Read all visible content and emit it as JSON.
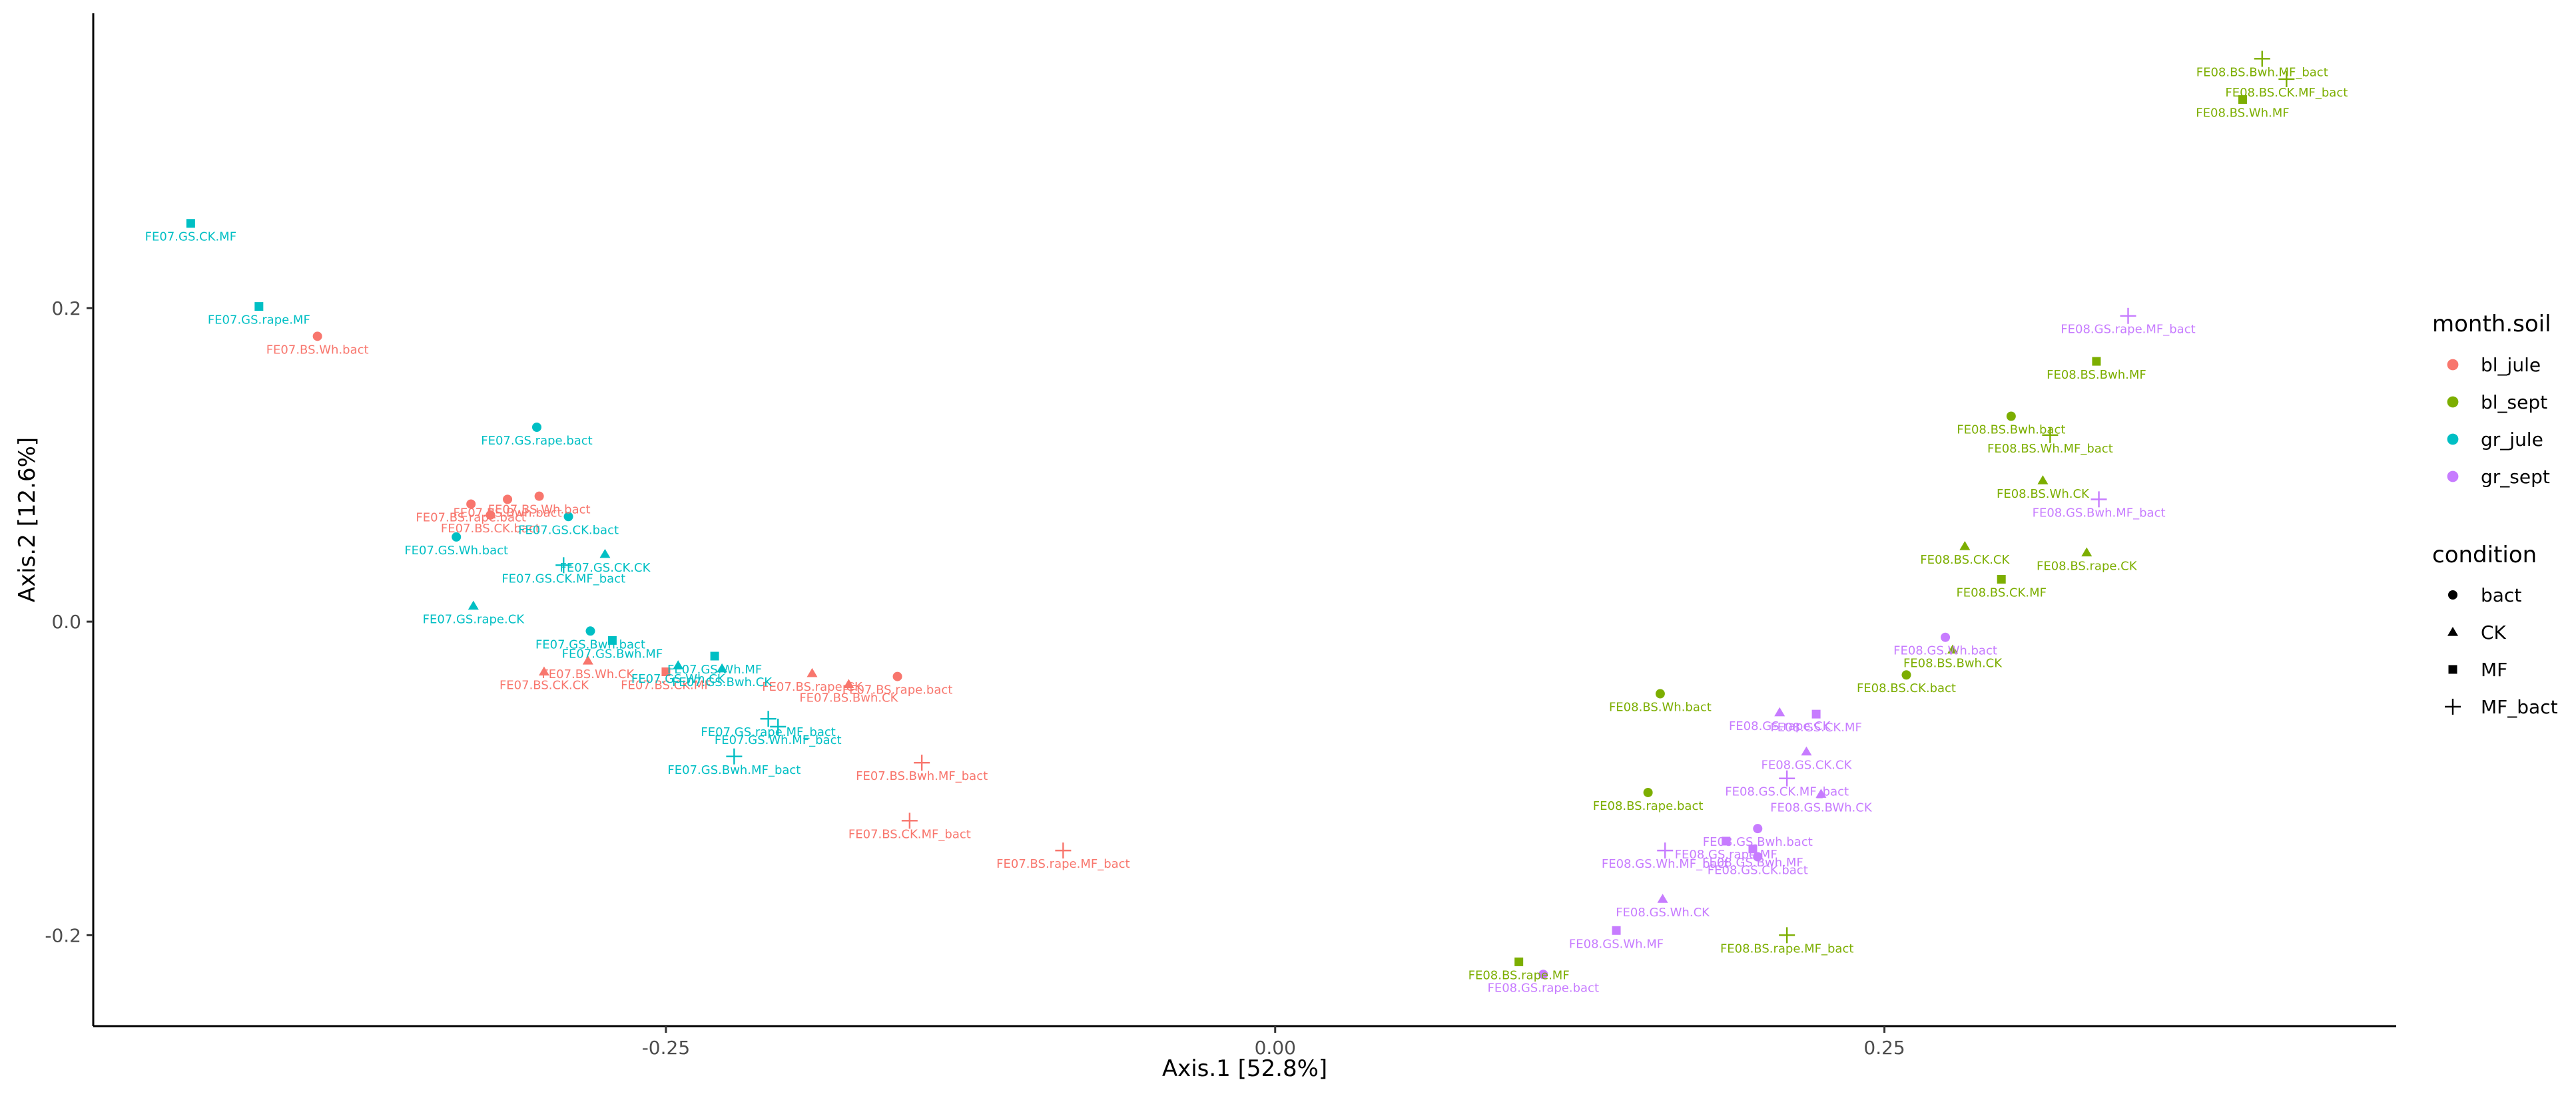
{
  "chart_data": {
    "type": "scatter",
    "title": "",
    "xlabel": "Axis.1   [52.8%]",
    "ylabel": "Axis.2   [12.6%]",
    "xlim": [
      -0.485,
      0.46
    ],
    "ylim": [
      -0.258,
      0.388
    ],
    "x_ticks": [
      -0.25,
      0.0,
      0.25
    ],
    "x_tick_labels": [
      "-0.25",
      "0.00",
      "0.25"
    ],
    "y_ticks": [
      -0.2,
      0.0,
      0.2
    ],
    "y_tick_labels": [
      "-0.2",
      "0.0",
      "0.2"
    ],
    "grid": false,
    "legend_position": "right",
    "legend_color": {
      "title": "month.soil",
      "items": [
        {
          "key": "bl_jule",
          "label": "bl_jule",
          "color": "#F8766D"
        },
        {
          "key": "bl_sept",
          "label": "bl_sept",
          "color": "#7CAE00"
        },
        {
          "key": "gr_jule",
          "label": "gr_jule",
          "color": "#00BFC4"
        },
        {
          "key": "gr_sept",
          "label": "gr_sept",
          "color": "#C77CFF"
        }
      ]
    },
    "legend_shape": {
      "title": "condition",
      "items": [
        {
          "key": "bact",
          "label": "bact",
          "shape": "circle"
        },
        {
          "key": "CK",
          "label": "CK",
          "shape": "triangle"
        },
        {
          "key": "MF",
          "label": "MF",
          "shape": "square"
        },
        {
          "key": "MF_bact",
          "label": "MF_bact",
          "shape": "plus"
        }
      ]
    },
    "points": [
      {
        "x": -0.393,
        "y": 0.182,
        "group": "bl_jule",
        "cond": "bact",
        "label": "FE07.BS.Wh.bact"
      },
      {
        "x": -0.33,
        "y": 0.075,
        "group": "bl_jule",
        "cond": "bact",
        "label": "FE07.BS.rape.bact"
      },
      {
        "x": -0.315,
        "y": 0.078,
        "group": "bl_jule",
        "cond": "bact",
        "label": "FE07.BS.Bwh.bact"
      },
      {
        "x": -0.302,
        "y": 0.08,
        "group": "bl_jule",
        "cond": "bact",
        "label": "FE07.BS.Wh.bact"
      },
      {
        "x": -0.322,
        "y": 0.068,
        "group": "bl_jule",
        "cond": "bact",
        "label": "FE07.BS.CK.bact"
      },
      {
        "x": -0.3,
        "y": -0.032,
        "group": "bl_jule",
        "cond": "CK",
        "label": "FE07.BS.CK.CK"
      },
      {
        "x": -0.282,
        "y": -0.025,
        "group": "bl_jule",
        "cond": "CK",
        "label": "FE07.BS.Wh.CK"
      },
      {
        "x": -0.25,
        "y": -0.032,
        "group": "bl_jule",
        "cond": "MF",
        "label": "FE07.BS.CK.MF"
      },
      {
        "x": -0.19,
        "y": -0.033,
        "group": "bl_jule",
        "cond": "CK",
        "label": "FE07.BS.rape.CK"
      },
      {
        "x": -0.175,
        "y": -0.04,
        "group": "bl_jule",
        "cond": "CK",
        "label": "FE07.BS.Bwh.CK"
      },
      {
        "x": -0.155,
        "y": -0.035,
        "group": "bl_jule",
        "cond": "bact",
        "label": "FE07.BS.rape.bact"
      },
      {
        "x": -0.145,
        "y": -0.09,
        "group": "bl_jule",
        "cond": "MF_bact",
        "label": "FE07.BS.Bwh.MF_bact"
      },
      {
        "x": -0.15,
        "y": -0.127,
        "group": "bl_jule",
        "cond": "MF_bact",
        "label": "FE07.BS.CK.MF_bact"
      },
      {
        "x": -0.087,
        "y": -0.146,
        "group": "bl_jule",
        "cond": "MF_bact",
        "label": "FE07.BS.rape.MF_bact"
      },
      {
        "x": -0.445,
        "y": 0.254,
        "group": "gr_jule",
        "cond": "MF",
        "label": "FE07.GS.CK.MF"
      },
      {
        "x": -0.417,
        "y": 0.201,
        "group": "gr_jule",
        "cond": "MF",
        "label": "FE07.GS.rape.MF"
      },
      {
        "x": -0.303,
        "y": 0.124,
        "group": "gr_jule",
        "cond": "bact",
        "label": "FE07.GS.rape.bact"
      },
      {
        "x": -0.29,
        "y": 0.067,
        "group": "gr_jule",
        "cond": "bact",
        "label": "FE07.GS.CK.bact"
      },
      {
        "x": -0.336,
        "y": 0.054,
        "group": "gr_jule",
        "cond": "bact",
        "label": "FE07.GS.Wh.bact"
      },
      {
        "x": -0.275,
        "y": 0.043,
        "group": "gr_jule",
        "cond": "CK",
        "label": "FE07.GS.CK.CK"
      },
      {
        "x": -0.292,
        "y": 0.036,
        "group": "gr_jule",
        "cond": "MF_bact",
        "label": "FE07.GS.CK.MF_bact"
      },
      {
        "x": -0.329,
        "y": 0.01,
        "group": "gr_jule",
        "cond": "CK",
        "label": "FE07.GS.rape.CK"
      },
      {
        "x": -0.281,
        "y": -0.006,
        "group": "gr_jule",
        "cond": "bact",
        "label": "FE07.GS.Bwh.bact"
      },
      {
        "x": -0.272,
        "y": -0.012,
        "group": "gr_jule",
        "cond": "MF",
        "label": "FE07.GS.Bwh.MF"
      },
      {
        "x": -0.23,
        "y": -0.022,
        "group": "gr_jule",
        "cond": "MF",
        "label": "FE07.GS.Wh.MF"
      },
      {
        "x": -0.227,
        "y": -0.03,
        "group": "gr_jule",
        "cond": "CK",
        "label": "FE07.GS.Bwh.CK"
      },
      {
        "x": -0.245,
        "y": -0.028,
        "group": "gr_jule",
        "cond": "CK",
        "label": "FE07.GS.Wh.CK"
      },
      {
        "x": -0.208,
        "y": -0.062,
        "group": "gr_jule",
        "cond": "MF_bact",
        "label": "FE07.GS.rape.MF_bact"
      },
      {
        "x": -0.204,
        "y": -0.067,
        "group": "gr_jule",
        "cond": "MF_bact",
        "label": "FE07.GS.Wh.MF_bact"
      },
      {
        "x": -0.222,
        "y": -0.086,
        "group": "gr_jule",
        "cond": "MF_bact",
        "label": "FE07.GS.Bwh.MF_bact"
      },
      {
        "x": 0.405,
        "y": 0.359,
        "group": "bl_sept",
        "cond": "MF_bact",
        "label": "FE08.BS.Bwh.MF_bact"
      },
      {
        "x": 0.415,
        "y": 0.346,
        "group": "bl_sept",
        "cond": "MF_bact",
        "label": "FE08.BS.CK.MF_bact"
      },
      {
        "x": 0.397,
        "y": 0.333,
        "group": "bl_sept",
        "cond": "MF",
        "label": "FE08.BS.Wh.MF"
      },
      {
        "x": 0.337,
        "y": 0.166,
        "group": "bl_sept",
        "cond": "MF",
        "label": "FE08.BS.Bwh.MF"
      },
      {
        "x": 0.302,
        "y": 0.131,
        "group": "bl_sept",
        "cond": "bact",
        "label": "FE08.BS.Bwh.bact"
      },
      {
        "x": 0.318,
        "y": 0.119,
        "group": "bl_sept",
        "cond": "MF_bact",
        "label": "FE08.BS.Wh.MF_bact"
      },
      {
        "x": 0.315,
        "y": 0.09,
        "group": "bl_sept",
        "cond": "CK",
        "label": "FE08.BS.Wh.CK"
      },
      {
        "x": 0.283,
        "y": 0.048,
        "group": "bl_sept",
        "cond": "CK",
        "label": "FE08.BS.CK.CK"
      },
      {
        "x": 0.333,
        "y": 0.044,
        "group": "bl_sept",
        "cond": "CK",
        "label": "FE08.BS.rape.CK"
      },
      {
        "x": 0.298,
        "y": 0.027,
        "group": "bl_sept",
        "cond": "MF",
        "label": "FE08.BS.CK.MF"
      },
      {
        "x": 0.278,
        "y": -0.018,
        "group": "bl_sept",
        "cond": "CK",
        "label": "FE08.BS.Bwh.CK"
      },
      {
        "x": 0.259,
        "y": -0.034,
        "group": "bl_sept",
        "cond": "bact",
        "label": "FE08.BS.CK.bact"
      },
      {
        "x": 0.158,
        "y": -0.046,
        "group": "bl_sept",
        "cond": "bact",
        "label": "FE08.BS.Wh.bact"
      },
      {
        "x": 0.153,
        "y": -0.109,
        "group": "bl_sept",
        "cond": "bact",
        "label": "FE08.BS.rape.bact"
      },
      {
        "x": 0.21,
        "y": -0.2,
        "group": "bl_sept",
        "cond": "MF_bact",
        "label": "FE08.BS.rape.MF_bact"
      },
      {
        "x": 0.1,
        "y": -0.217,
        "group": "bl_sept",
        "cond": "MF",
        "label": "FE08.BS.rape.MF"
      },
      {
        "x": 0.35,
        "y": 0.195,
        "group": "gr_sept",
        "cond": "MF_bact",
        "label": "FE08.GS.rape.MF_bact"
      },
      {
        "x": 0.338,
        "y": 0.078,
        "group": "gr_sept",
        "cond": "MF_bact",
        "label": "FE08.GS.Bwh.MF_bact"
      },
      {
        "x": 0.275,
        "y": -0.01,
        "group": "gr_sept",
        "cond": "bact",
        "label": "FE08.GS.Wh.bact"
      },
      {
        "x": 0.222,
        "y": -0.059,
        "group": "gr_sept",
        "cond": "MF",
        "label": "FE08.GS.CK.MF"
      },
      {
        "x": 0.207,
        "y": -0.058,
        "group": "gr_sept",
        "cond": "CK",
        "label": "FE08.GS.rape.CK"
      },
      {
        "x": 0.218,
        "y": -0.083,
        "group": "gr_sept",
        "cond": "CK",
        "label": "FE08.GS.CK.CK"
      },
      {
        "x": 0.21,
        "y": -0.1,
        "group": "gr_sept",
        "cond": "MF_bact",
        "label": "FE08.GS.CK.MF_bact"
      },
      {
        "x": 0.224,
        "y": -0.11,
        "group": "gr_sept",
        "cond": "CK",
        "label": "FE08.GS.BWh.CK"
      },
      {
        "x": 0.198,
        "y": -0.132,
        "group": "gr_sept",
        "cond": "bact",
        "label": "FE08.GS.Bwh.bact"
      },
      {
        "x": 0.185,
        "y": -0.14,
        "group": "gr_sept",
        "cond": "MF",
        "label": "FE08.GS.rape.MF"
      },
      {
        "x": 0.196,
        "y": -0.145,
        "group": "gr_sept",
        "cond": "MF",
        "label": "FE08.GS.Bwh.MF"
      },
      {
        "x": 0.16,
        "y": -0.146,
        "group": "gr_sept",
        "cond": "MF_bact",
        "label": "FE08.GS.Wh.MF_bact"
      },
      {
        "x": 0.198,
        "y": -0.15,
        "group": "gr_sept",
        "cond": "bact",
        "label": "FE08.GS.CK.bact"
      },
      {
        "x": 0.159,
        "y": -0.177,
        "group": "gr_sept",
        "cond": "CK",
        "label": "FE08.GS.Wh.CK"
      },
      {
        "x": 0.14,
        "y": -0.197,
        "group": "gr_sept",
        "cond": "MF",
        "label": "FE08.GS.Wh.MF"
      },
      {
        "x": 0.11,
        "y": -0.225,
        "group": "gr_sept",
        "cond": "bact",
        "label": "FE08.GS.rape.bact"
      }
    ]
  }
}
